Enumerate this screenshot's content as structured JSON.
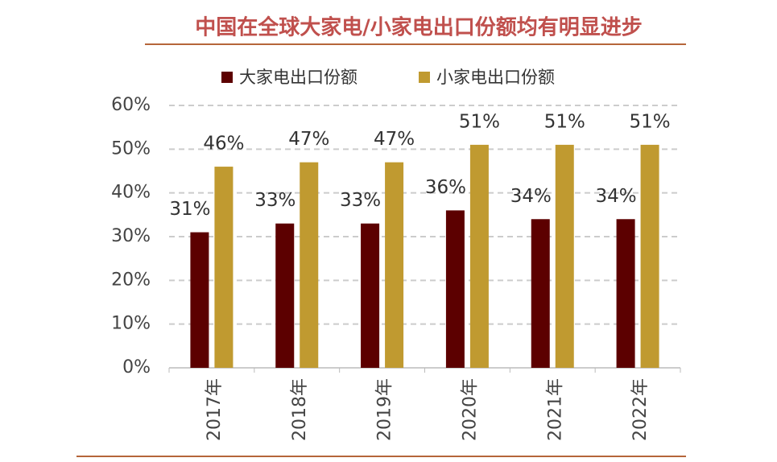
{
  "chart_data": {
    "type": "bar",
    "title": "中国在全球大家电/小家电出口份额均有明显进步",
    "categories": [
      "2017年",
      "2018年",
      "2019年",
      "2020年",
      "2021年",
      "2022年"
    ],
    "series": [
      {
        "name": "大家电出口份额",
        "color": "#5c0000",
        "values": [
          31,
          33,
          33,
          36,
          34,
          34
        ],
        "value_labels": [
          "31%",
          "33%",
          "33%",
          "36%",
          "34%",
          "34%"
        ]
      },
      {
        "name": "小家电出口份额",
        "color": "#c09a30",
        "values": [
          46,
          47,
          47,
          51,
          51,
          51
        ],
        "value_labels": [
          "46%",
          "47%",
          "47%",
          "51%",
          "51%",
          "51%"
        ]
      }
    ],
    "ylim": [
      0,
      60
    ],
    "yticks": [
      {
        "value": 0,
        "label": "0%"
      },
      {
        "value": 10,
        "label": "10%"
      },
      {
        "value": 20,
        "label": "20%"
      },
      {
        "value": 30,
        "label": "30%"
      },
      {
        "value": 40,
        "label": "40%"
      },
      {
        "value": 50,
        "label": "50%"
      },
      {
        "value": 60,
        "label": "60%"
      }
    ],
    "grid": true
  }
}
